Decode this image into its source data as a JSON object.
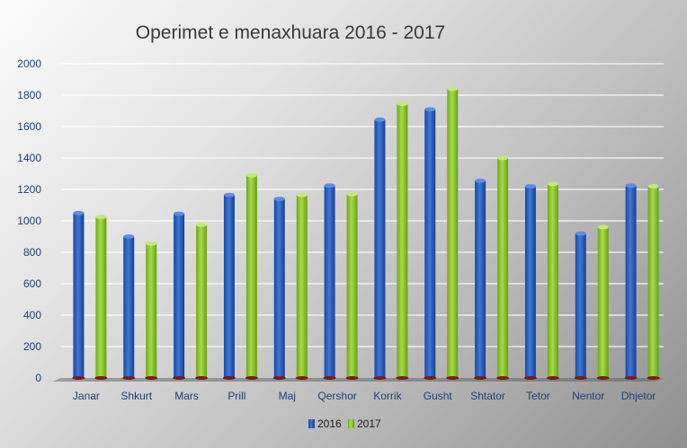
{
  "chart_data": {
    "type": "bar",
    "title": "Operimet e menaxhuara 2016 - 2017",
    "categories": [
      "Janar",
      "Shkurt",
      "Mars",
      "Prill",
      "Maj",
      "Qershor",
      "Korrik",
      "Gusht",
      "Shtator",
      "Tetor",
      "Nentor",
      "Dhjetor"
    ],
    "series": [
      {
        "name": "2016",
        "color": "#2f62c0",
        "values": [
          1050,
          900,
          1045,
          1165,
          1140,
          1225,
          1645,
          1710,
          1255,
          1220,
          920,
          1225
        ]
      },
      {
        "name": "2017",
        "color": "#8ecb2e",
        "values": [
          1025,
          855,
          975,
          1290,
          1165,
          1170,
          1745,
          1840,
          1400,
          1235,
          960,
          1220
        ]
      }
    ],
    "ylim": [
      0,
      2000
    ],
    "yticks": [
      "0",
      "200",
      "400",
      "600",
      "800",
      "1000",
      "1200",
      "1400",
      "1600",
      "1800",
      "2000"
    ],
    "grid": true,
    "legend_position": "bottom"
  }
}
